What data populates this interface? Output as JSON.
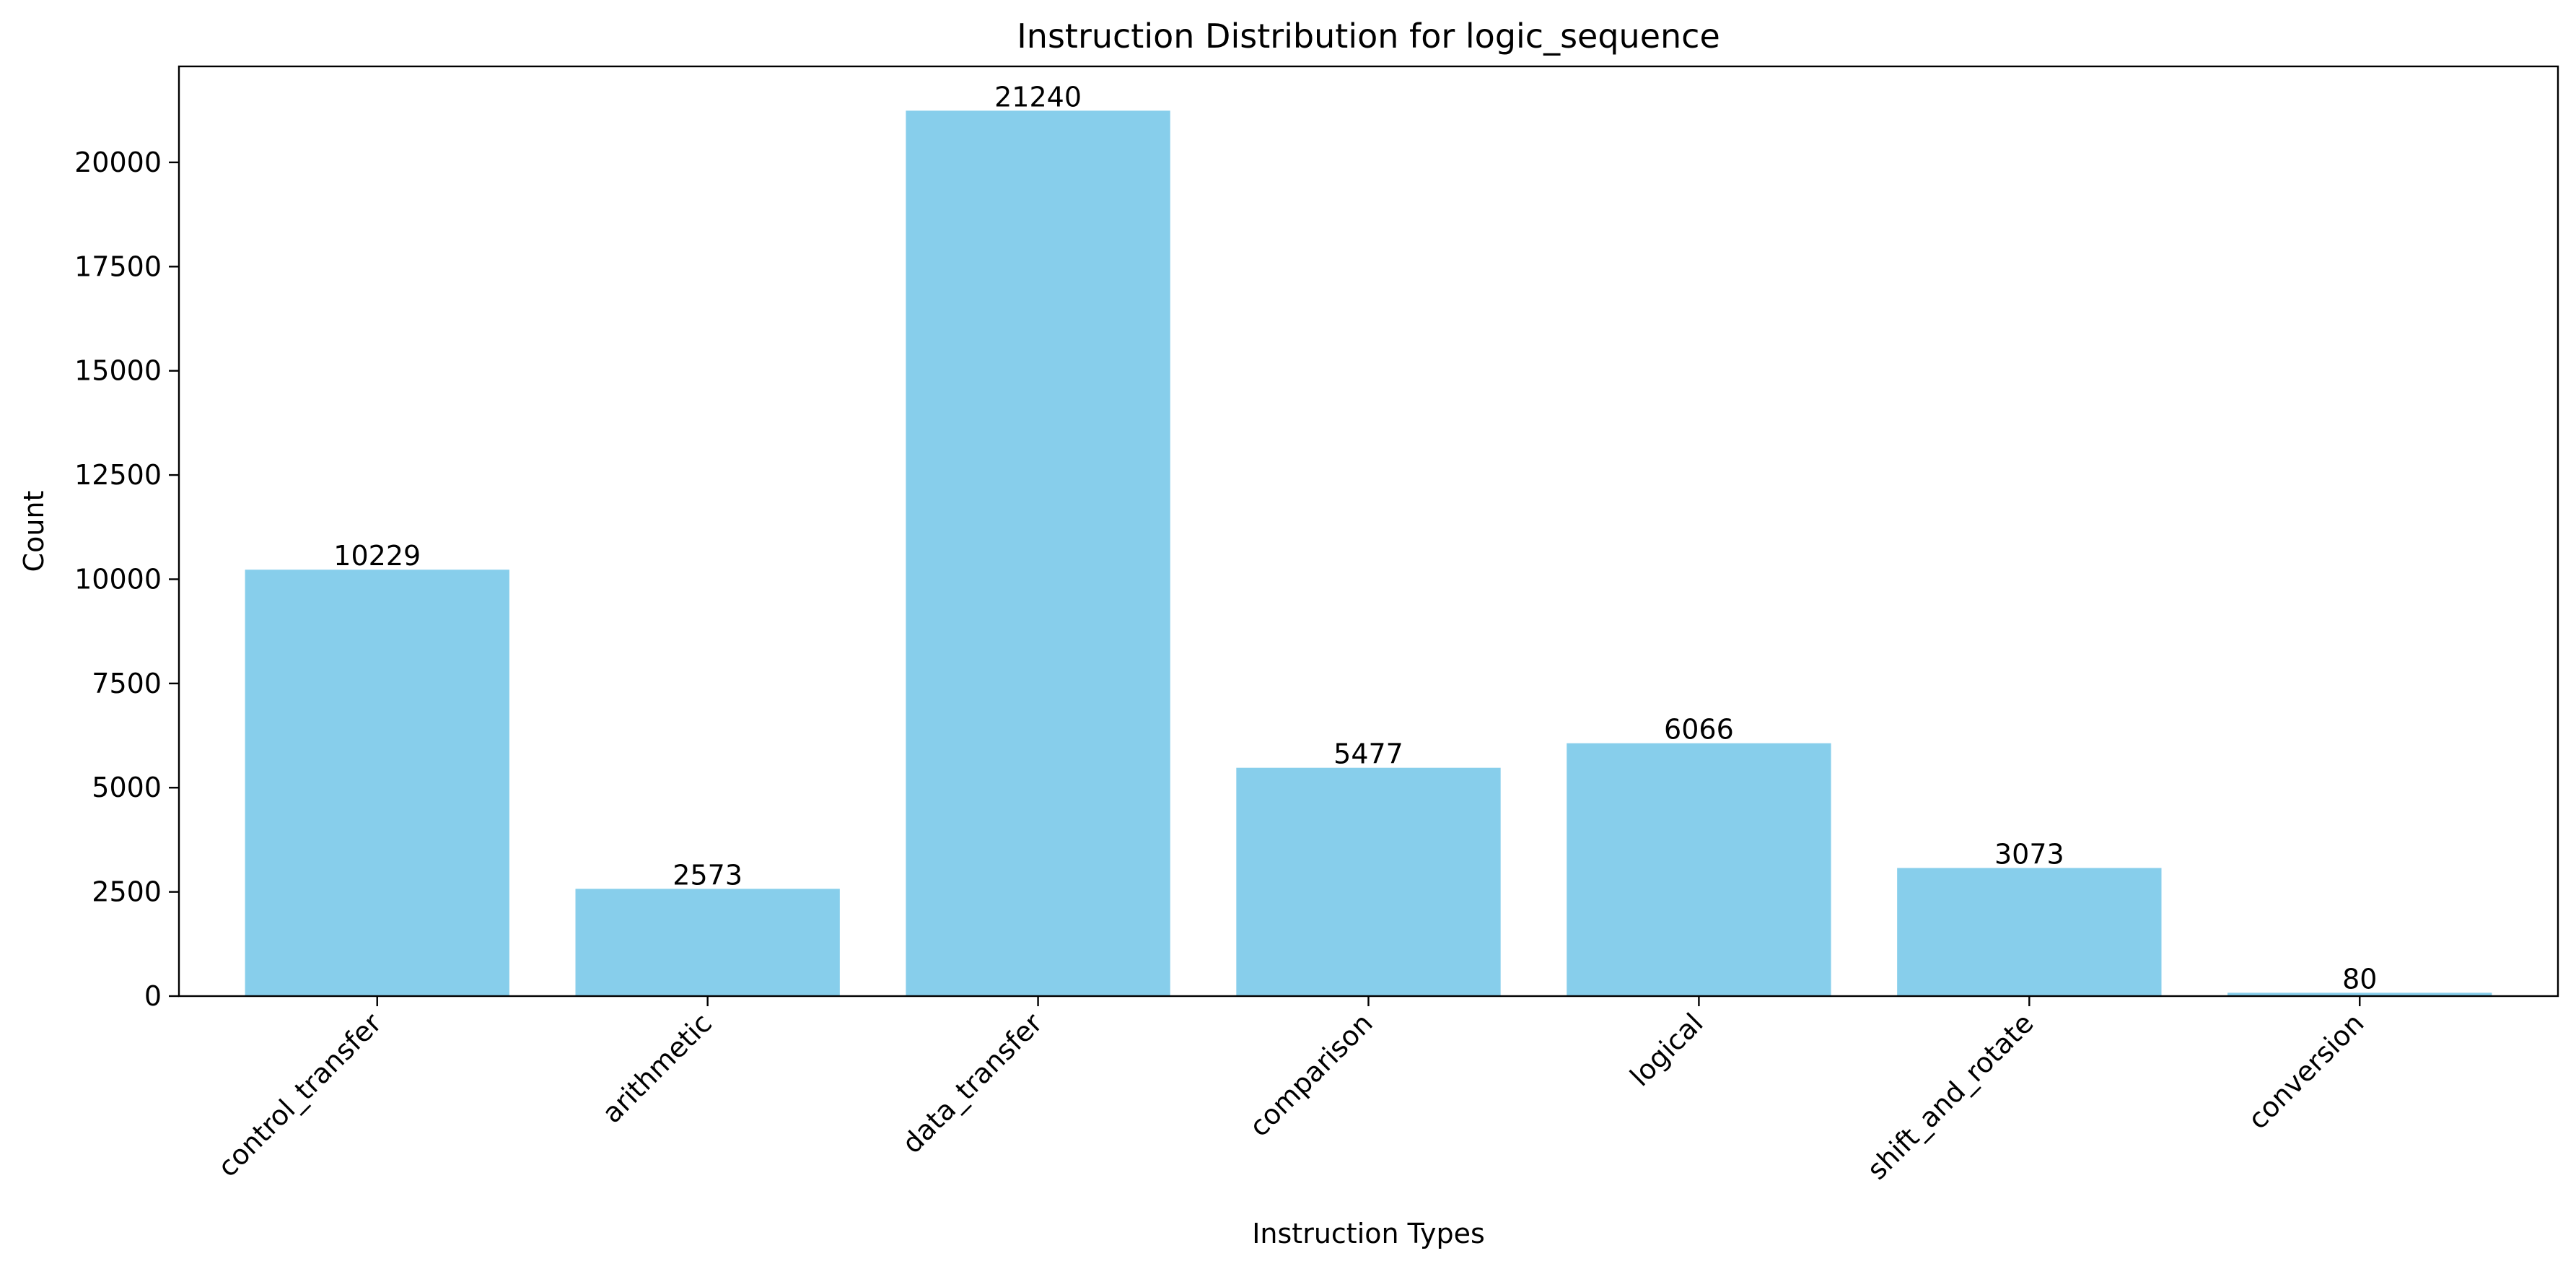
{
  "chart_data": {
    "type": "bar",
    "title": "Instruction Distribution for logic_sequence",
    "xlabel": "Instruction Types",
    "ylabel": "Count",
    "categories": [
      "control_transfer",
      "arithmetic",
      "data_transfer",
      "comparison",
      "logical",
      "shift_and_rotate",
      "conversion"
    ],
    "values": [
      10229,
      2573,
      21240,
      5477,
      6066,
      3073,
      80
    ],
    "data_labels": [
      "10229",
      "2573",
      "21240",
      "5477",
      "6066",
      "3073",
      "80"
    ],
    "ylim": [
      0,
      22302
    ],
    "yticks": [
      0,
      2500,
      5000,
      7500,
      10000,
      12500,
      15000,
      17500,
      20000
    ],
    "ytick_labels": [
      "0",
      "2500",
      "5000",
      "7500",
      "10000",
      "12500",
      "15000",
      "17500",
      "20000"
    ],
    "bar_color": "#87CEEB",
    "grid": false,
    "legend": "none",
    "xtick_rotation": 45
  }
}
